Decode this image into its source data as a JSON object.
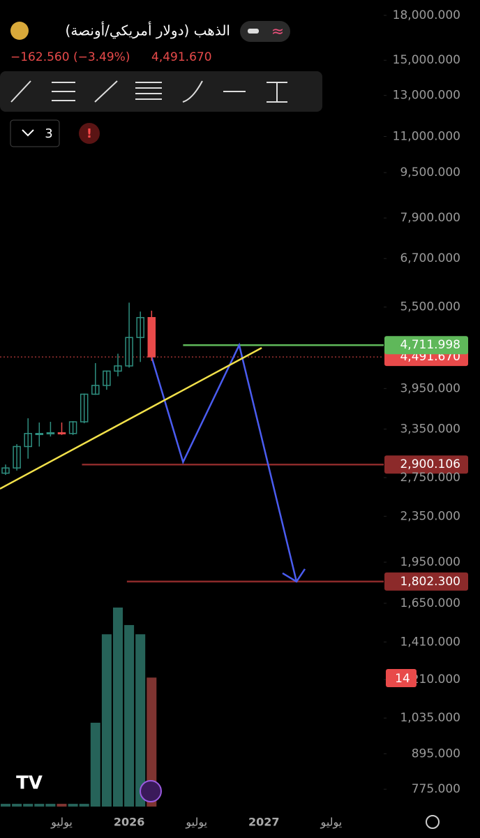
{
  "header": {
    "title": "الذهب (دولار أمريكي/أونصة)",
    "change": "−162.560 (−3.49%)",
    "price": "4,491.670"
  },
  "toolbar": {
    "count": "3"
  },
  "chart_data": {
    "type": "candlestick",
    "log_scale": true,
    "categories": [
      null,
      null,
      null,
      null,
      null,
      "يوليو",
      null,
      null,
      null,
      null,
      null,
      "2026",
      null,
      null,
      null,
      null,
      null,
      "يوليو",
      null,
      null,
      null,
      null,
      null,
      "2027",
      null,
      null,
      null,
      null,
      null,
      "يوليو",
      null
    ],
    "open": [
      2800,
      2860,
      3120,
      3290,
      3290,
      3300,
      3290,
      3450,
      3860,
      4000,
      4240,
      4330,
      4860,
      5270,
      null,
      null,
      null,
      null,
      null,
      null,
      null,
      null,
      null,
      null,
      null,
      null,
      null,
      null,
      null,
      null,
      null
    ],
    "high": [
      2900,
      3150,
      3500,
      3440,
      3450,
      3440,
      3460,
      3870,
      4380,
      4250,
      4550,
      5600,
      5400,
      5420,
      null,
      null,
      null,
      null,
      null,
      null,
      null,
      null,
      null,
      null,
      null,
      null,
      null,
      null,
      null,
      null,
      null
    ],
    "low": [
      2780,
      2830,
      2970,
      3120,
      3250,
      3270,
      3270,
      3430,
      3850,
      3930,
      4150,
      4300,
      4400,
      4420,
      null,
      null,
      null,
      null,
      null,
      null,
      null,
      null,
      null,
      null,
      null,
      null,
      null,
      null,
      null,
      null,
      null
    ],
    "close": [
      2860,
      3120,
      3290,
      3290,
      3300,
      3290,
      3450,
      3860,
      4000,
      4240,
      4330,
      4860,
      5270,
      4491.67,
      null,
      null,
      null,
      null,
      null,
      null,
      null,
      null,
      null,
      null,
      null,
      null,
      null,
      null,
      null,
      null,
      null
    ],
    "volume": [
      0.3,
      0.3,
      0.3,
      0.3,
      0.3,
      0.3,
      0.3,
      0.3,
      9.1,
      18.7,
      21.6,
      19.7,
      18.7,
      14,
      null,
      null,
      null,
      null,
      null,
      null,
      null,
      null,
      null,
      null,
      null,
      null,
      null,
      null,
      null,
      null,
      null
    ],
    "up_color": "#2f8f80",
    "down_color": "#e84a4a",
    "volume_up_color": "#2a6e63",
    "volume_down_color": "#8c3a36",
    "ylim": [
      712,
      19160
    ],
    "yticks": [
      {
        "value": 18000,
        "label": "18,000.000"
      },
      {
        "value": 15000,
        "label": "15,000.000"
      },
      {
        "value": 13000,
        "label": "13,000.000"
      },
      {
        "value": 11000,
        "label": "11,000.000"
      },
      {
        "value": 9500,
        "label": "9,500.000"
      },
      {
        "value": 7900,
        "label": "7,900.000"
      },
      {
        "value": 6700,
        "label": "6,700.000"
      },
      {
        "value": 5500,
        "label": "5,500.000"
      },
      {
        "value": 3950,
        "label": "3,950.000"
      },
      {
        "value": 3350,
        "label": "3,350.000"
      },
      {
        "value": 2750,
        "label": "2,750.000"
      },
      {
        "value": 2350,
        "label": "2,350.000"
      },
      {
        "value": 1950,
        "label": "1,950.000"
      },
      {
        "value": 1650,
        "label": "1,650.000"
      },
      {
        "value": 1410,
        "label": "1,410.000"
      },
      {
        "value": 1210,
        "label": "1,210.000"
      },
      {
        "value": 1035,
        "label": "1,035.000"
      },
      {
        "value": 895,
        "label": "895.000"
      },
      {
        "value": 775,
        "label": "775.000"
      }
    ],
    "last": {
      "value": 4491.67,
      "label": "4,491.670",
      "color": "#e84a4a"
    },
    "levels": [
      {
        "value": 4711.998,
        "label": "4,711.998",
        "color": "#5fb85a",
        "from": 15.8
      },
      {
        "value": 2900.106,
        "label": "2,900.106",
        "color": "#8c2a2a",
        "from": 6.8
      },
      {
        "value": 1802.3,
        "label": "1,802.300",
        "color": "#8c2a2a",
        "from": 10.8
      }
    ],
    "trendline": {
      "x": [
        -0.5,
        22.8
      ],
      "y": [
        2628,
        4660
      ],
      "color": "#f2e14a"
    },
    "projection": {
      "x": [
        13,
        15.8,
        20.8,
        25.9
      ],
      "y": [
        4491.67,
        2929,
        4711.998,
        1802.3
      ],
      "color": "#4a5cf0"
    }
  }
}
